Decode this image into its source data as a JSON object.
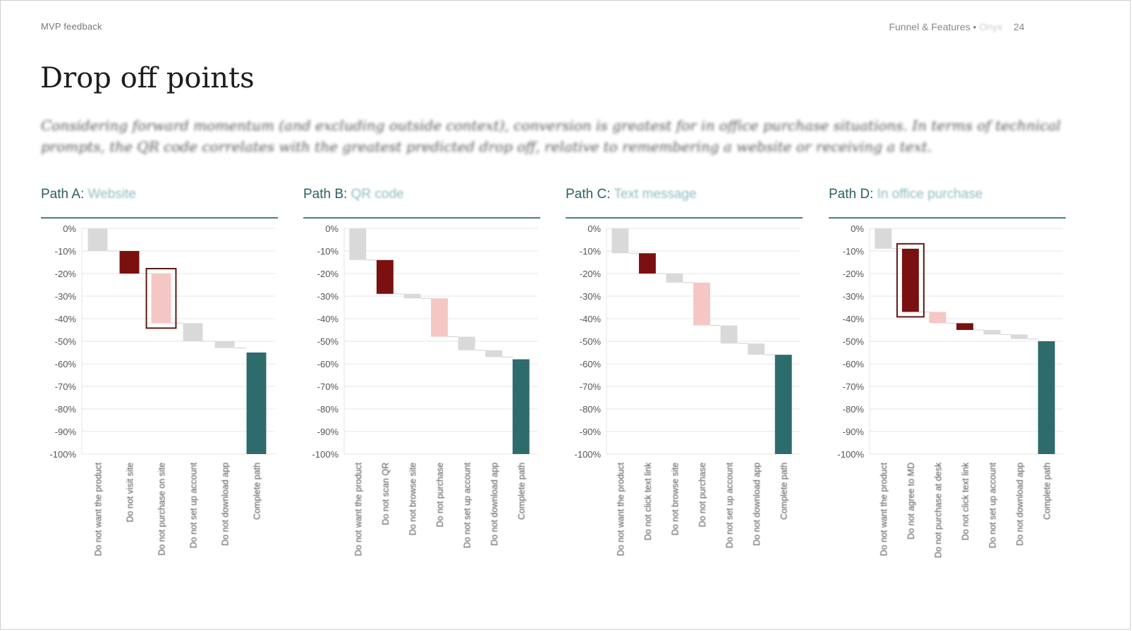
{
  "header": {
    "left": "MVP feedback",
    "right_label": "Funnel & Features •",
    "right_sub": "Onyx",
    "page": "24"
  },
  "title": "Drop off points",
  "intro": "Considering forward momentum (and excluding outside context), conversion is greatest for in office purchase situations.  In terms of technical prompts, the QR code correlates with the greatest predicted drop off, relative to remembering a website or receiving a text.",
  "colors": {
    "grey": "#d9d9d9",
    "dark_red": "#7a1010",
    "pink": "#f4c7c5",
    "teal": "#2e6b6d",
    "highlight": "#5a1a12",
    "grid": "#e4e4e4",
    "accent": "#4d7f82"
  },
  "chart_data": [
    {
      "type": "waterfall",
      "panel_label": "Path A:",
      "panel_sub": "Website",
      "yticks": [
        "0%",
        "-10%",
        "-20%",
        "-30%",
        "-40%",
        "-50%",
        "-60%",
        "-70%",
        "-80%",
        "-90%",
        "-100%"
      ],
      "ylim": [
        -100,
        0
      ],
      "categories": [
        "Do not want the product",
        "Do not visit site",
        "Do not purchase on site",
        "Do not set up account",
        "Do not download app",
        "Complete path"
      ],
      "values": [
        -10,
        -10,
        -22,
        -8,
        -3,
        -55
      ],
      "kinds": [
        "grey",
        "red",
        "pink",
        "grey",
        "grey",
        "total"
      ],
      "highlight_index": 2
    },
    {
      "type": "waterfall",
      "panel_label": "Path B:",
      "panel_sub": "QR code",
      "yticks": [
        "0%",
        "-10%",
        "-20%",
        "-30%",
        "-40%",
        "-50%",
        "-60%",
        "-70%",
        "-80%",
        "-90%",
        "-100%"
      ],
      "ylim": [
        -100,
        0
      ],
      "categories": [
        "Do not want the product",
        "Do not scan QR",
        "Do not browse site",
        "Do not purchase",
        "Do not set up account",
        "Do not download app",
        "Complete path"
      ],
      "values": [
        -14,
        -15,
        -2,
        -17,
        -6,
        -3,
        -58
      ],
      "kinds": [
        "grey",
        "red",
        "grey",
        "pink",
        "grey",
        "grey",
        "total"
      ],
      "highlight_index": null
    },
    {
      "type": "waterfall",
      "panel_label": "Path C:",
      "panel_sub": "Text message",
      "yticks": [
        "0%",
        "-10%",
        "-20%",
        "-30%",
        "-40%",
        "-50%",
        "-60%",
        "-70%",
        "-80%",
        "-90%",
        "-100%"
      ],
      "ylim": [
        -100,
        0
      ],
      "categories": [
        "Do not want the product",
        "Do not click text link",
        "Do not browse site",
        "Do not purchase",
        "Do not set up account",
        "Do not download app",
        "Complete path"
      ],
      "values": [
        -11,
        -9,
        -4,
        -19,
        -8,
        -5,
        -56
      ],
      "kinds": [
        "grey",
        "red",
        "grey",
        "pink",
        "grey",
        "grey",
        "total"
      ],
      "highlight_index": null
    },
    {
      "type": "waterfall",
      "panel_label": "Path D:",
      "panel_sub": "In office purchase",
      "yticks": [
        "0%",
        "-10%",
        "-20%",
        "-30%",
        "-40%",
        "-50%",
        "-60%",
        "-70%",
        "-80%",
        "-90%",
        "-100%"
      ],
      "ylim": [
        -100,
        0
      ],
      "categories": [
        "Do not want the product",
        "Do not agree to MD",
        "Do not purchase at desk",
        "Do not click text link",
        "Do not set up account",
        "Do not download app",
        "Complete path"
      ],
      "values": [
        -9,
        -28,
        -5,
        -3,
        -2,
        -2,
        -50
      ],
      "kinds": [
        "grey",
        "red",
        "pink",
        "red",
        "grey",
        "grey",
        "total"
      ],
      "highlight_index": 1
    }
  ]
}
